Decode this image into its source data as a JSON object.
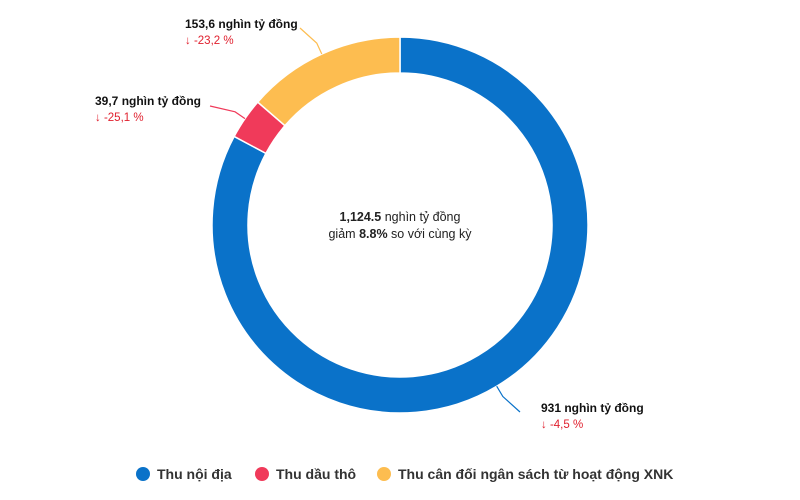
{
  "chart_data": {
    "type": "pie",
    "center": {
      "total_value": "1,124.5",
      "total_unit": " nghìn tỷ đồng",
      "line2_prefix": "giảm ",
      "line2_value": "8.8%",
      "line2_suffix": " so với cùng kỳ"
    },
    "series": [
      {
        "name": "Thu nội địa",
        "value": 931,
        "value_label": "931 nghìn tỷ đồng",
        "change_label": "↓ -4,5 %",
        "color": "#0a72c9"
      },
      {
        "name": "Thu dầu thô",
        "value": 39.7,
        "value_label": "39,7 nghìn tỷ đồng",
        "change_label": "↓ -25,1 %",
        "color": "#f03a5a"
      },
      {
        "name": "Thu cân đối ngân sách từ hoạt động XNK",
        "value": 153.6,
        "value_label": "153,6 nghìn tỷ đồng",
        "change_label": "↓ -23,2 %",
        "color": "#fdbd50"
      }
    ],
    "legend_position": "bottom",
    "change_color": "#e0202e"
  }
}
